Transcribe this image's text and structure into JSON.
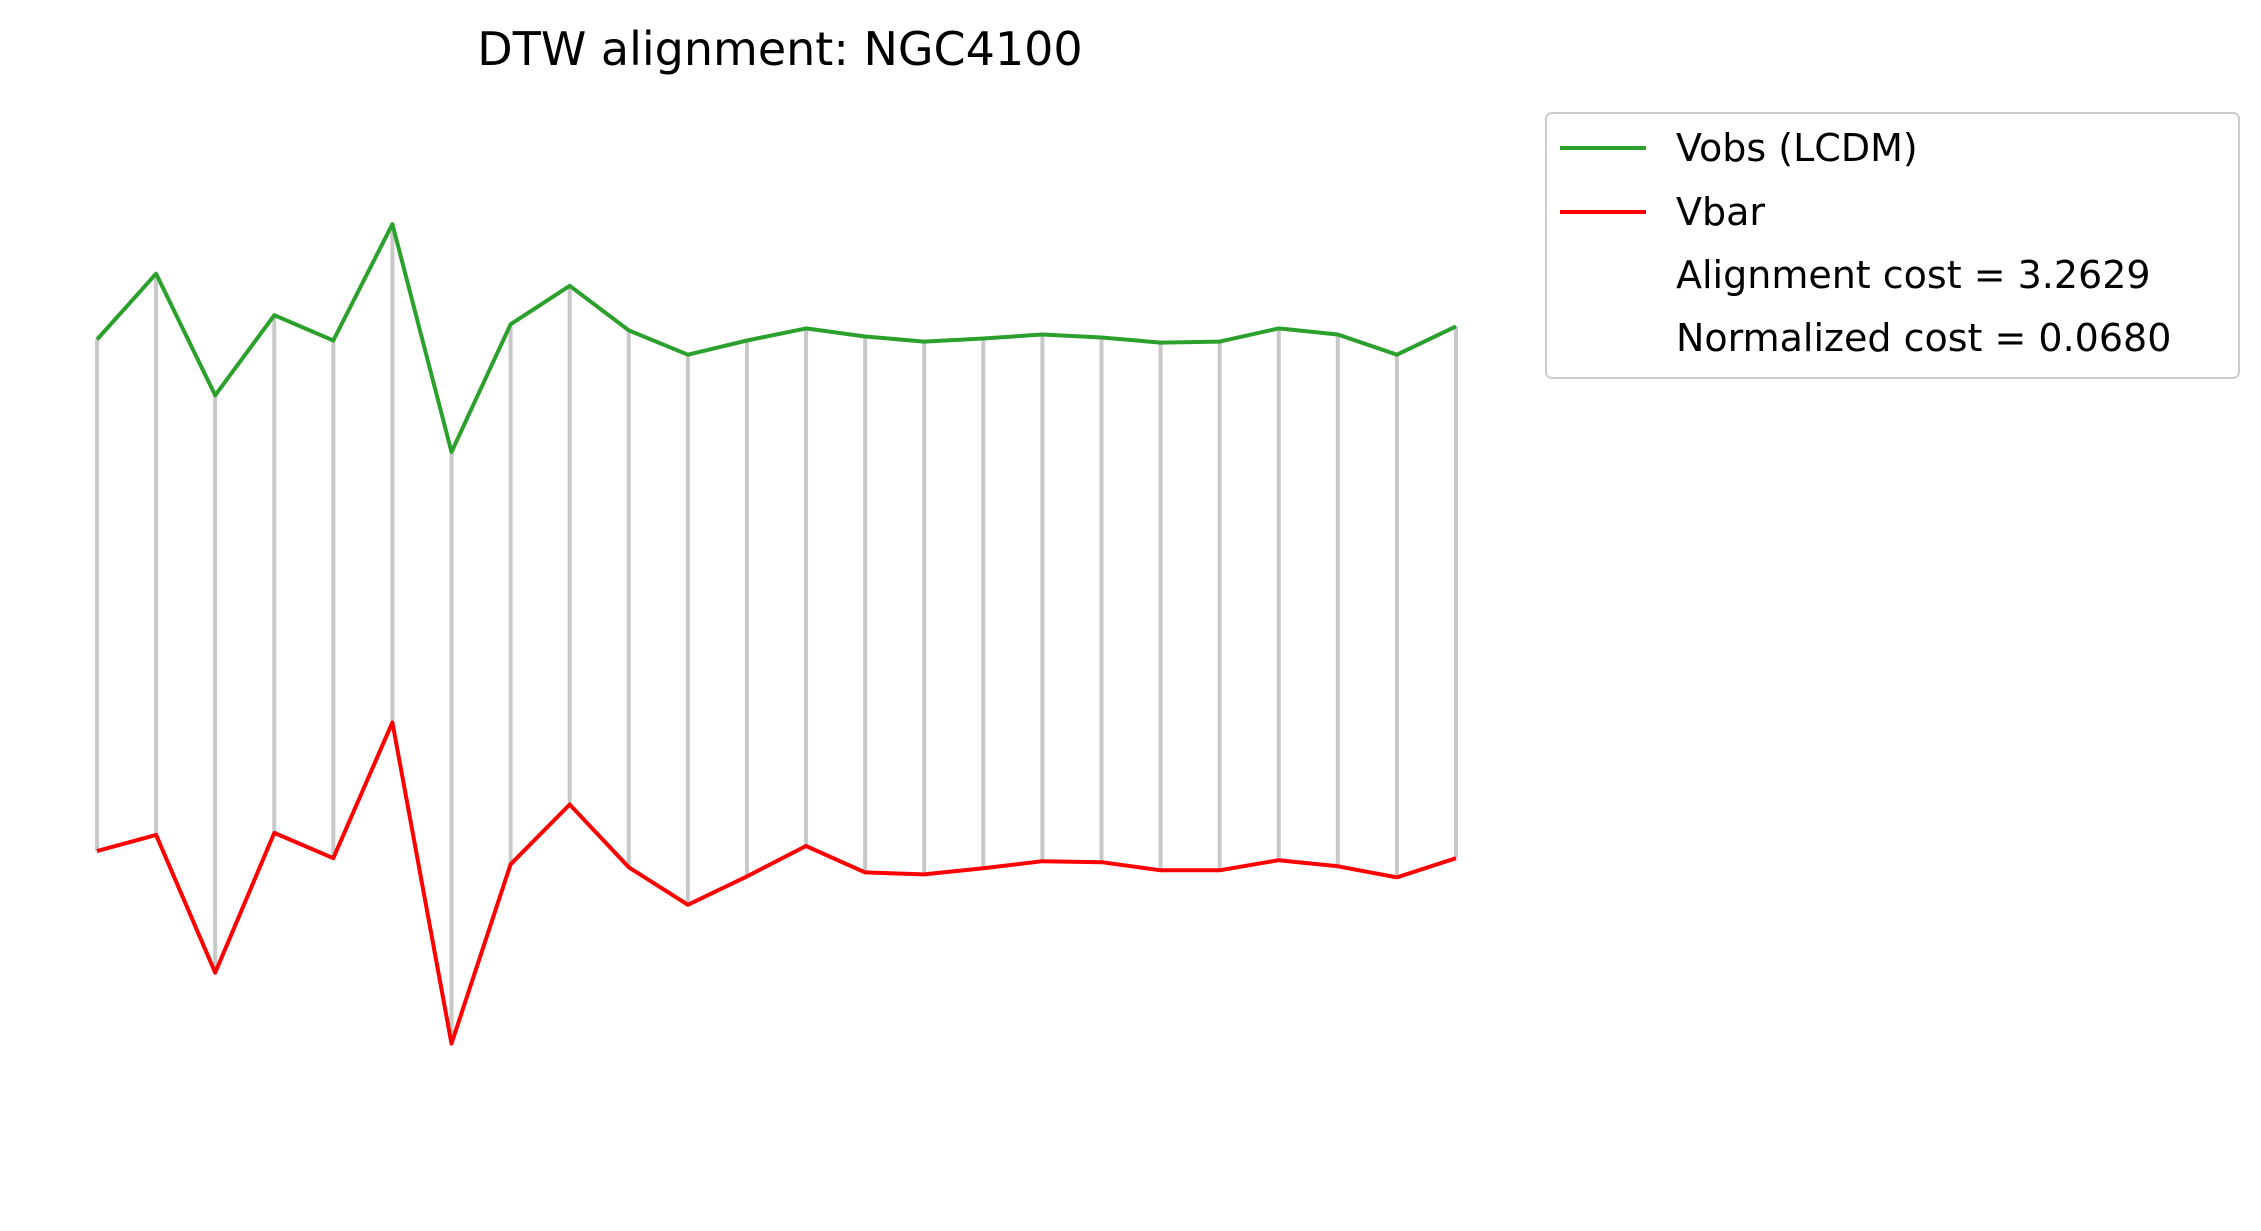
{
  "chart_data": {
    "type": "line",
    "title": "DTW alignment: NGC4100",
    "xlabel": "",
    "ylabel": "",
    "axes_visible": false,
    "grid": false,
    "legend_position": "outside-right-top",
    "x": [
      0,
      1,
      2,
      3,
      4,
      5,
      6,
      7,
      8,
      9,
      10,
      11,
      12,
      13,
      14,
      15,
      16,
      17,
      18,
      19,
      20,
      21,
      22,
      23
    ],
    "series": [
      {
        "name": "Vobs (LCDM)",
        "color": "#2ca02c",
        "values": [
          0.805,
          0.87,
          0.75,
          0.829,
          0.804,
          0.919,
          0.694,
          0.82,
          0.858,
          0.814,
          0.79,
          0.804,
          0.816,
          0.808,
          0.803,
          0.806,
          0.81,
          0.807,
          0.802,
          0.803,
          0.816,
          0.81,
          0.79,
          0.818
        ]
      },
      {
        "name": "Vbar",
        "color": "#ff0000",
        "values": [
          0.3,
          0.316,
          0.18,
          0.318,
          0.293,
          0.427,
          0.11,
          0.287,
          0.346,
          0.284,
          0.247,
          0.275,
          0.305,
          0.279,
          0.277,
          0.283,
          0.29,
          0.289,
          0.281,
          0.281,
          0.291,
          0.285,
          0.274,
          0.293
        ]
      }
    ],
    "alignment": {
      "color": "#c8c8c8",
      "pairs": [
        [
          0,
          0
        ],
        [
          1,
          1
        ],
        [
          2,
          2
        ],
        [
          3,
          3
        ],
        [
          4,
          4
        ],
        [
          5,
          5
        ],
        [
          6,
          6
        ],
        [
          7,
          7
        ],
        [
          8,
          8
        ],
        [
          9,
          9
        ],
        [
          10,
          10
        ],
        [
          11,
          11
        ],
        [
          12,
          12
        ],
        [
          13,
          13
        ],
        [
          14,
          14
        ],
        [
          15,
          15
        ],
        [
          16,
          16
        ],
        [
          17,
          17
        ],
        [
          18,
          18
        ],
        [
          19,
          19
        ],
        [
          20,
          20
        ],
        [
          21,
          21
        ],
        [
          22,
          22
        ],
        [
          23,
          23
        ]
      ]
    },
    "annotations": [
      "Alignment cost = 3.2629",
      "Normalized cost = 0.0680"
    ]
  }
}
